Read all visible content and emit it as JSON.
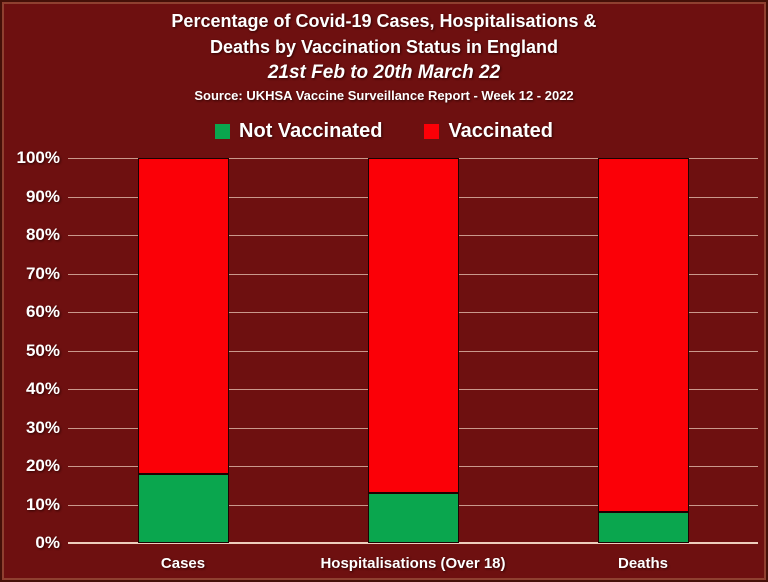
{
  "header": {
    "title_line1": "Percentage of Covid-19 Cases, Hospitalisations &",
    "title_line2": "Deaths by Vaccination Status in England",
    "subtitle": "21st Feb to 20th March 22",
    "source": "Source: UKHSA Vaccine Surveillance Report - Week 12 - 2022"
  },
  "legend": {
    "items": [
      {
        "label": "Not Vaccinated",
        "color": "#0aa64e"
      },
      {
        "label": "Vaccinated",
        "color": "#fb0007"
      }
    ]
  },
  "chart_data": {
    "type": "bar",
    "stacked": true,
    "title": "Percentage of Covid-19 Cases, Hospitalisations & Deaths by Vaccination Status in England",
    "categories": [
      "Cases",
      "Hospitalisations (Over 18)",
      "Deaths"
    ],
    "series": [
      {
        "name": "Not Vaccinated",
        "color": "#0aa64e",
        "values": [
          18,
          13,
          8
        ]
      },
      {
        "name": "Vaccinated",
        "color": "#fb0007",
        "values": [
          82,
          87,
          92
        ]
      }
    ],
    "ylim": [
      0,
      100
    ],
    "ytick_values": [
      0,
      10,
      20,
      30,
      40,
      50,
      60,
      70,
      80,
      90,
      100
    ],
    "ytick_labels": [
      "0%",
      "10%",
      "20%",
      "30%",
      "40%",
      "50%",
      "60%",
      "70%",
      "80%",
      "90%",
      "100%"
    ],
    "grid": true,
    "legend_position": "top",
    "colors": {
      "background": "#6e1010",
      "gridline": "#eecdbd",
      "bar_outline": "#1d0202",
      "text": "#ffffff"
    }
  }
}
